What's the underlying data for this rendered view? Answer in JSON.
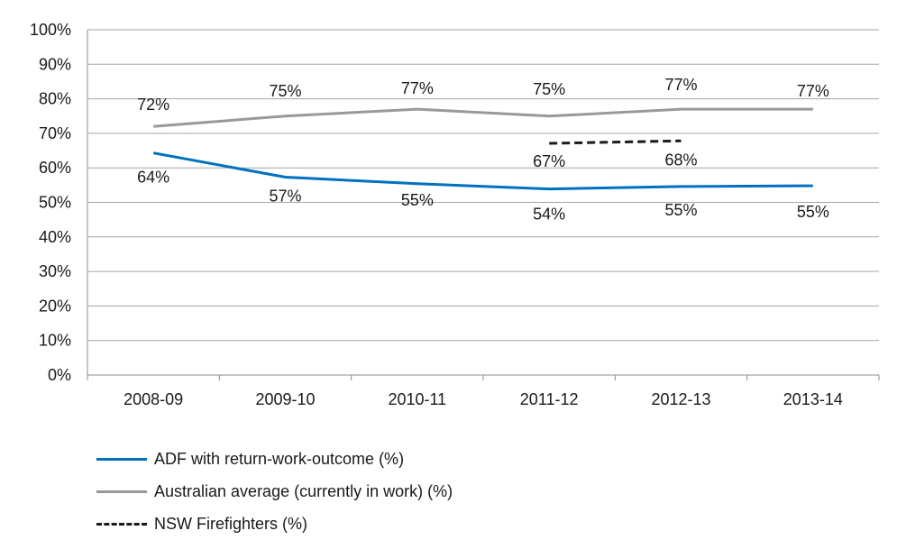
{
  "chart_data": {
    "type": "line",
    "title": "",
    "xlabel": "",
    "ylabel": "",
    "categories": [
      "2008-09",
      "2009-10",
      "2010-11",
      "2011-12",
      "2012-13",
      "2013-14"
    ],
    "ylim": [
      0,
      100
    ],
    "yticks": [
      "0%",
      "10%",
      "20%",
      "30%",
      "40%",
      "50%",
      "60%",
      "70%",
      "80%",
      "90%",
      "100%"
    ],
    "grid": true,
    "legend_position": "bottom-left",
    "series": [
      {
        "name": "ADF with return-work-outcome (%)",
        "key": "adf",
        "color": "#0070c0",
        "style": "solid",
        "values": [
          64.3,
          57.3,
          55.4,
          53.9,
          54.6,
          54.8
        ],
        "labels": [
          "64%",
          "57%",
          "55%",
          "54%",
          "55%",
          "55%"
        ]
      },
      {
        "name": "Australian average (currently in work) (%)",
        "key": "aus",
        "color": "#999999",
        "style": "solid",
        "values": [
          72,
          75,
          77,
          75,
          77,
          77
        ],
        "labels": [
          "72%",
          "75%",
          "77%",
          "75%",
          "77%",
          "77%"
        ]
      },
      {
        "name": "NSW Firefighters (%)",
        "key": "nsw",
        "color": "#1a1a1a",
        "style": "dashed",
        "values": [
          null,
          null,
          null,
          67.1,
          67.8,
          null
        ],
        "labels": [
          null,
          null,
          null,
          "67%",
          "68%",
          null
        ]
      }
    ]
  }
}
